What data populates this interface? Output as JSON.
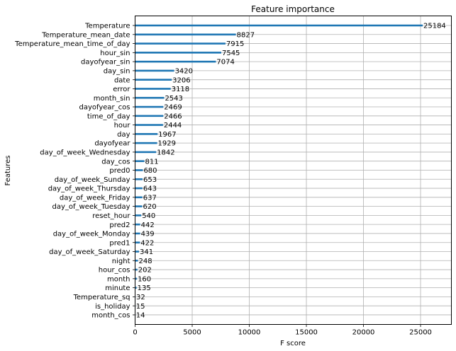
{
  "chart_data": {
    "type": "bar",
    "orientation": "horizontal",
    "title": "Feature importance",
    "xlabel": "F score",
    "ylabel": "Features",
    "xlim": [
      0,
      27700
    ],
    "xticks": [
      0,
      5000,
      10000,
      15000,
      20000,
      25000
    ],
    "grid": true,
    "bar_color": "#1f77b4",
    "categories": [
      "Temperature",
      "Temperature_mean_date",
      "Temperature_mean_time_of_day",
      "hour_sin",
      "dayofyear_sin",
      "day_sin",
      "date",
      "error",
      "month_sin",
      "dayofyear_cos",
      "time_of_day",
      "hour",
      "day",
      "dayofyear",
      "day_of_week_Wednesday",
      "day_cos",
      "pred0",
      "day_of_week_Sunday",
      "day_of_week_Thursday",
      "day_of_week_Friday",
      "day_of_week_Tuesday",
      "reset_hour",
      "pred2",
      "day_of_week_Monday",
      "pred1",
      "day_of_week_Saturday",
      "night",
      "hour_cos",
      "month",
      "minute",
      "Temperature_sq",
      "is_holiday",
      "month_cos"
    ],
    "values": [
      25184,
      8827,
      7915,
      7545,
      7074,
      3420,
      3206,
      3118,
      2543,
      2469,
      2466,
      2444,
      1967,
      1929,
      1842,
      811,
      680,
      653,
      643,
      637,
      620,
      540,
      442,
      439,
      422,
      341,
      248,
      202,
      160,
      135,
      32,
      15,
      14
    ]
  }
}
